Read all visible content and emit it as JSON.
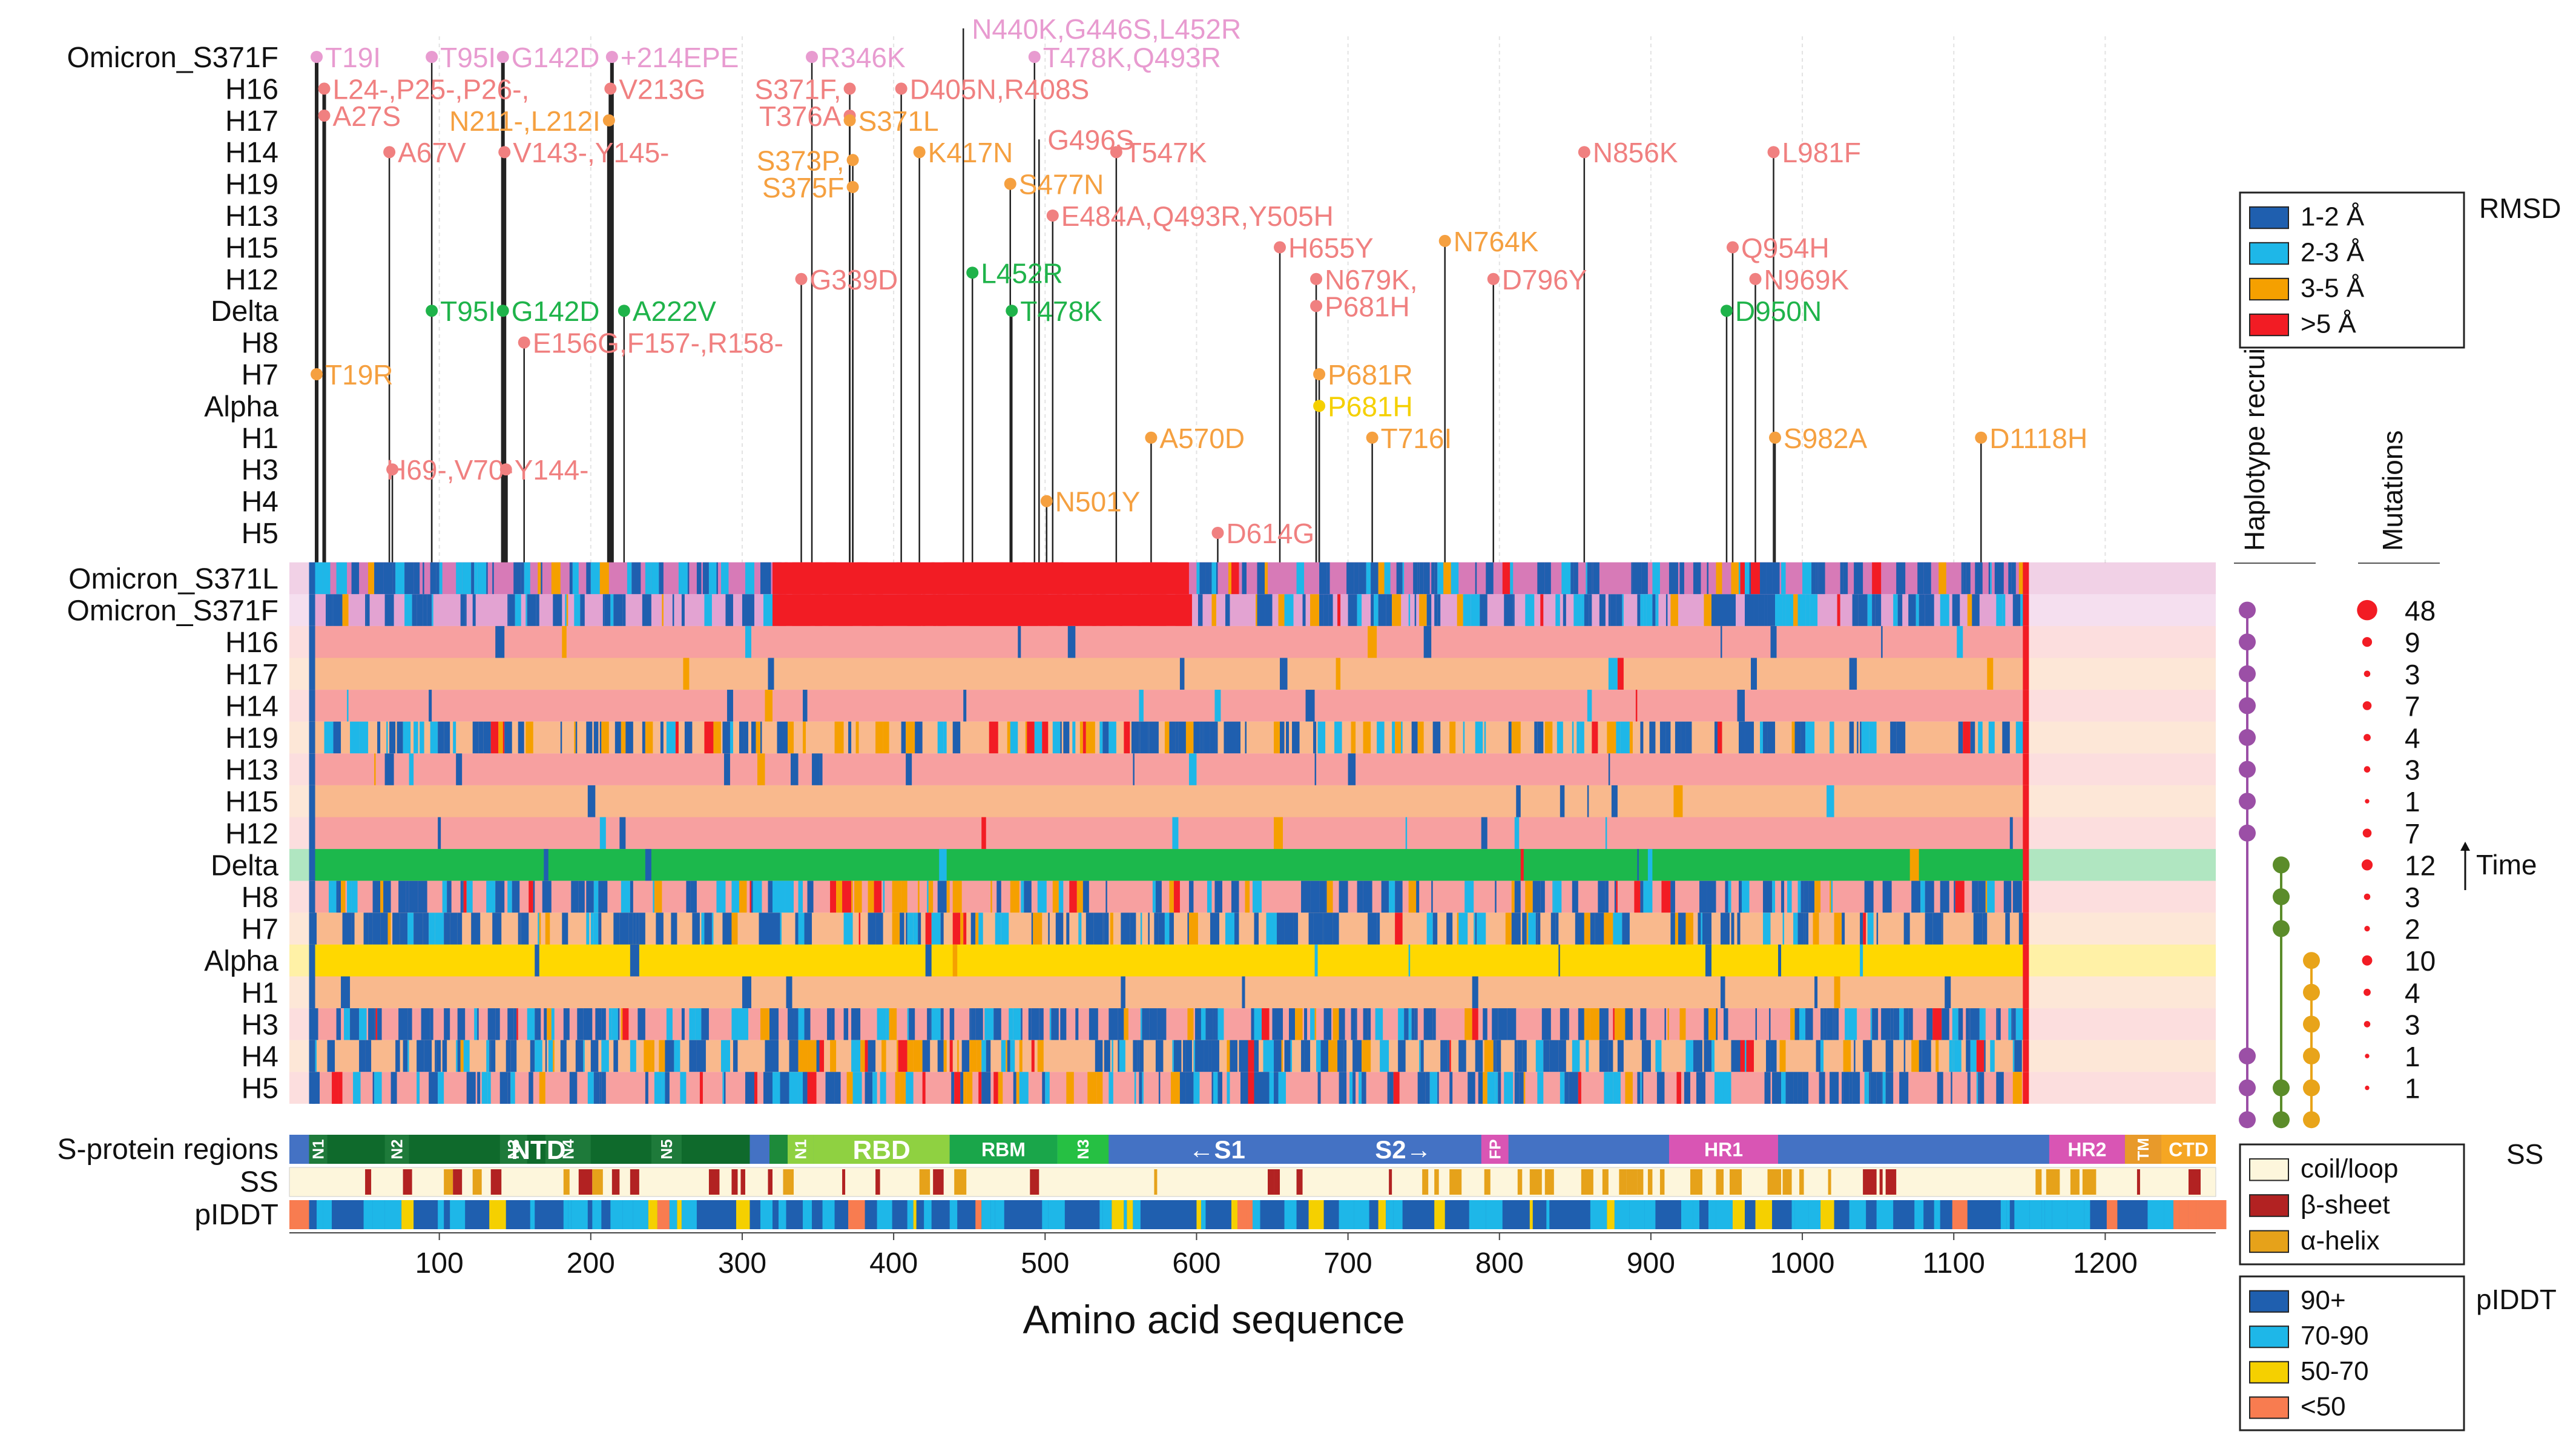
{
  "chart_data": {
    "type": "heatmap",
    "title": "",
    "xlabel": "Amino acid sequence",
    "xlim": [
      1,
      1273
    ],
    "x_ticks": [
      100,
      200,
      300,
      400,
      500,
      600,
      700,
      800,
      900,
      1000,
      1100,
      1200
    ],
    "panel_rows": [
      "Omicron_S371F",
      "H16",
      "H17",
      "H14",
      "H19",
      "H13",
      "H15",
      "H12",
      "Delta",
      "H8",
      "H7",
      "Alpha",
      "H1",
      "H3",
      "H4",
      "H5"
    ],
    "heatmap_rows": [
      "Omicron_S371L",
      "Omicron_S371F",
      "H16",
      "H17",
      "H14",
      "H19",
      "H13",
      "H15",
      "H12",
      "Delta",
      "H8",
      "H7",
      "Alpha",
      "H1",
      "H3",
      "H4",
      "H5"
    ],
    "mutation_labels": [
      {
        "text": "T19I",
        "x": 19,
        "row": 0,
        "color": "#e89bd0",
        "dir": "right"
      },
      {
        "text": "T95I",
        "x": 95,
        "row": 0,
        "color": "#e89bd0",
        "dir": "right"
      },
      {
        "text": "G142D",
        "x": 142,
        "row": 0,
        "color": "#e89bd0",
        "dir": "right"
      },
      {
        "text": "+214EPE",
        "x": 214,
        "row": 0,
        "color": "#e89bd0",
        "dir": "right"
      },
      {
        "text": "R346K",
        "x": 346,
        "row": 0,
        "color": "#e89bd0",
        "dir": "right"
      },
      {
        "text": "N440K,G446S,L452R",
        "x": 446,
        "row": -0.9,
        "color": "#e89bd0",
        "dir": "right"
      },
      {
        "text": "T478K,Q493R",
        "x": 493,
        "row": 0,
        "color": "#e89bd0",
        "dir": "right"
      },
      {
        "text": "L24-,P25-,P26-,",
        "x": 24,
        "row": 1,
        "color": "#f08080",
        "dir": "right"
      },
      {
        "text": "A27S",
        "x": 24,
        "row": 1.85,
        "color": "#f08080",
        "dir": "right"
      },
      {
        "text": "V213G",
        "x": 213,
        "row": 1,
        "color": "#f08080",
        "dir": "right"
      },
      {
        "text": "S371F,",
        "x": 371,
        "row": 1,
        "color": "#f08080",
        "dir": "left"
      },
      {
        "text": "T376A",
        "x": 371,
        "row": 1.85,
        "color": "#f08080",
        "dir": "left"
      },
      {
        "text": "D405N,R408S",
        "x": 405,
        "row": 1,
        "color": "#f08080",
        "dir": "right"
      },
      {
        "text": "N211-,L212I",
        "x": 212,
        "row": 2,
        "color": "#f5a040",
        "dir": "left"
      },
      {
        "text": "S371L",
        "x": 371,
        "row": 2,
        "color": "#f5a040",
        "dir": "right"
      },
      {
        "text": "A67V",
        "x": 67,
        "row": 3,
        "color": "#f08080",
        "dir": "right"
      },
      {
        "text": "V143-,Y145-",
        "x": 143,
        "row": 3,
        "color": "#f08080",
        "dir": "right"
      },
      {
        "text": "K417N",
        "x": 417,
        "row": 3,
        "color": "#f5a040",
        "dir": "right"
      },
      {
        "text": "G496S",
        "x": 496,
        "row": 2.6,
        "color": "#f08080",
        "dir": "right"
      },
      {
        "text": "T547K",
        "x": 547,
        "row": 3,
        "color": "#f08080",
        "dir": "right"
      },
      {
        "text": "N856K",
        "x": 856,
        "row": 3,
        "color": "#f08080",
        "dir": "right"
      },
      {
        "text": "L981F",
        "x": 981,
        "row": 3,
        "color": "#f08080",
        "dir": "right"
      },
      {
        "text": "S373P,",
        "x": 373,
        "row": 3.25,
        "color": "#f5a040",
        "dir": "left"
      },
      {
        "text": "S375F",
        "x": 373,
        "row": 4.1,
        "color": "#f5a040",
        "dir": "left"
      },
      {
        "text": "S477N",
        "x": 477,
        "row": 4,
        "color": "#f5a040",
        "dir": "right"
      },
      {
        "text": "E484A,Q493R,Y505H",
        "x": 505,
        "row": 5,
        "color": "#f08080",
        "dir": "right"
      },
      {
        "text": "N764K",
        "x": 764,
        "row": 5.8,
        "color": "#f5a040",
        "dir": "right"
      },
      {
        "text": "Q954H",
        "x": 954,
        "row": 6,
        "color": "#f08080",
        "dir": "right"
      },
      {
        "text": "H655Y",
        "x": 655,
        "row": 6,
        "color": "#f08080",
        "dir": "right"
      },
      {
        "text": "N679K,",
        "x": 679,
        "row": 7,
        "color": "#f08080",
        "dir": "right"
      },
      {
        "text": "P681H",
        "x": 679,
        "row": 7.85,
        "color": "#f08080",
        "dir": "right"
      },
      {
        "text": "G339D",
        "x": 339,
        "row": 7,
        "color": "#f08080",
        "dir": "right"
      },
      {
        "text": "D796Y",
        "x": 796,
        "row": 7,
        "color": "#f08080",
        "dir": "right"
      },
      {
        "text": "N969K",
        "x": 969,
        "row": 7,
        "color": "#f08080",
        "dir": "right"
      },
      {
        "text": "L452R",
        "x": 452,
        "row": 6.8,
        "color": "#1fb34a",
        "dir": "right"
      },
      {
        "text": "T95I",
        "x": 95,
        "row": 8,
        "color": "#1fb34a",
        "dir": "right"
      },
      {
        "text": "G142D",
        "x": 142,
        "row": 8,
        "color": "#1fb34a",
        "dir": "right"
      },
      {
        "text": "A222V",
        "x": 222,
        "row": 8,
        "color": "#1fb34a",
        "dir": "right"
      },
      {
        "text": "T478K",
        "x": 478,
        "row": 8,
        "color": "#1fb34a",
        "dir": "right"
      },
      {
        "text": "D950N",
        "x": 950,
        "row": 8,
        "color": "#1fb34a",
        "dir": "right"
      },
      {
        "text": "E156G,F157-,R158-",
        "x": 156,
        "row": 9,
        "color": "#f08080",
        "dir": "right"
      },
      {
        "text": "T19R",
        "x": 19,
        "row": 10,
        "color": "#f5a040",
        "dir": "right"
      },
      {
        "text": "P681R",
        "x": 681,
        "row": 10,
        "color": "#f5a040",
        "dir": "right"
      },
      {
        "text": "P681H",
        "x": 681,
        "row": 11,
        "color": "#f5d000",
        "dir": "right"
      },
      {
        "text": "A570D",
        "x": 570,
        "row": 12,
        "color": "#f5a040",
        "dir": "right"
      },
      {
        "text": "T716I",
        "x": 716,
        "row": 12,
        "color": "#f5a040",
        "dir": "right"
      },
      {
        "text": "S982A",
        "x": 982,
        "row": 12,
        "color": "#f5a040",
        "dir": "right"
      },
      {
        "text": "D1118H",
        "x": 1118,
        "row": 12,
        "color": "#f5a040",
        "dir": "right"
      },
      {
        "text": "H69-,V70-",
        "x": 69,
        "row": 13,
        "color": "#f08080",
        "dir": "above"
      },
      {
        "text": "Y144-",
        "x": 144,
        "row": 13,
        "color": "#f08080",
        "dir": "right"
      },
      {
        "text": "N501Y",
        "x": 501,
        "row": 14,
        "color": "#f5a040",
        "dir": "right"
      },
      {
        "text": "D614G",
        "x": 614,
        "row": 15,
        "color": "#f08080",
        "dir": "right"
      }
    ],
    "mutation_counts": [
      48,
      9,
      3,
      7,
      4,
      3,
      1,
      7,
      12,
      3,
      2,
      10,
      4,
      3,
      1,
      1
    ],
    "time_label": "Time",
    "haplotype_recruitment": {
      "header": "Haplotype recruitment",
      "purple_rows": [
        1,
        2,
        3,
        4,
        5,
        6,
        7,
        8,
        15,
        16,
        17
      ],
      "green_rows": [
        9,
        10,
        11,
        16,
        17
      ],
      "orange_rows": [
        12,
        13,
        14,
        15,
        16,
        17
      ],
      "colors": {
        "purple": "#9b4fa6",
        "green": "#5b8c2a",
        "orange": "#e8a41a"
      }
    },
    "mutations_header": "Mutations",
    "s_regions": [
      {
        "label": "N1",
        "start": 14,
        "end": 26,
        "color": "#1e7a3a"
      },
      {
        "label": "NTD",
        "start": 26,
        "end": 305,
        "color": "#0f6a2c"
      },
      {
        "label": "N2",
        "start": 64,
        "end": 80,
        "color": "#1e7a3a"
      },
      {
        "label": "N3",
        "start": 140,
        "end": 158,
        "color": "#1e7a3a"
      },
      {
        "label": "N4",
        "start": 170,
        "end": 200,
        "color": "#1e7a3a"
      },
      {
        "label": "N5",
        "start": 240,
        "end": 260,
        "color": "#1e7a3a"
      },
      {
        "label": "",
        "start": 305,
        "end": 318,
        "color": "#4472c4"
      },
      {
        "label": "",
        "start": 318,
        "end": 330,
        "color": "#1d8a3a"
      },
      {
        "label": "N1",
        "start": 330,
        "end": 347,
        "color": "#8fd141"
      },
      {
        "label": "RBD",
        "start": 347,
        "end": 437,
        "color": "#8fd141"
      },
      {
        "label": "RBM",
        "start": 437,
        "end": 508,
        "color": "#1aa64a"
      },
      {
        "label": "N3",
        "start": 508,
        "end": 542,
        "color": "#26c043"
      },
      {
        "label": "←S1",
        "start": 542,
        "end": 685,
        "color": "#4472c4"
      },
      {
        "label": "S2→",
        "start": 685,
        "end": 788,
        "color": "#4472c4"
      },
      {
        "label": "FP",
        "start": 788,
        "end": 806,
        "color": "#d955b4"
      },
      {
        "label": "",
        "start": 806,
        "end": 912,
        "color": "#4472c4"
      },
      {
        "label": "HR1",
        "start": 912,
        "end": 984,
        "color": "#d955b4"
      },
      {
        "label": "",
        "start": 984,
        "end": 1163,
        "color": "#4472c4"
      },
      {
        "label": "HR2",
        "start": 1163,
        "end": 1213,
        "color": "#d955b4"
      },
      {
        "label": "TM",
        "start": 1213,
        "end": 1237,
        "color": "#e89a2a"
      },
      {
        "label": "CTD",
        "start": 1237,
        "end": 1273,
        "color": "#f5a623"
      }
    ],
    "track_labels": {
      "regions": "S-protein regions",
      "ss": "SS",
      "plddt": "pIDDT"
    },
    "legends": {
      "rmsd": {
        "title": "RMSD",
        "items": [
          {
            "label": "1-2 Å",
            "color": "#1f5faf"
          },
          {
            "label": "2-3 Å",
            "color": "#1eb7e8"
          },
          {
            "label": "3-5 Å",
            "color": "#f5a000"
          },
          {
            "label": ">5 Å",
            "color": "#f21c24"
          }
        ]
      },
      "ss": {
        "title": "SS",
        "items": [
          {
            "label": "coil/loop",
            "color": "#fdf6dc"
          },
          {
            "label": "β-sheet",
            "color": "#b22222"
          },
          {
            "label": "α-helix",
            "color": "#e6a21a"
          }
        ]
      },
      "plddt": {
        "title": "pIDDT",
        "items": [
          {
            "label": "90+",
            "color": "#1f5faf"
          },
          {
            "label": "70-90",
            "color": "#1eb7e8"
          },
          {
            "label": "50-70",
            "color": "#f5d000"
          },
          {
            "label": "<50",
            "color": "#f87c50"
          }
        ]
      }
    }
  }
}
